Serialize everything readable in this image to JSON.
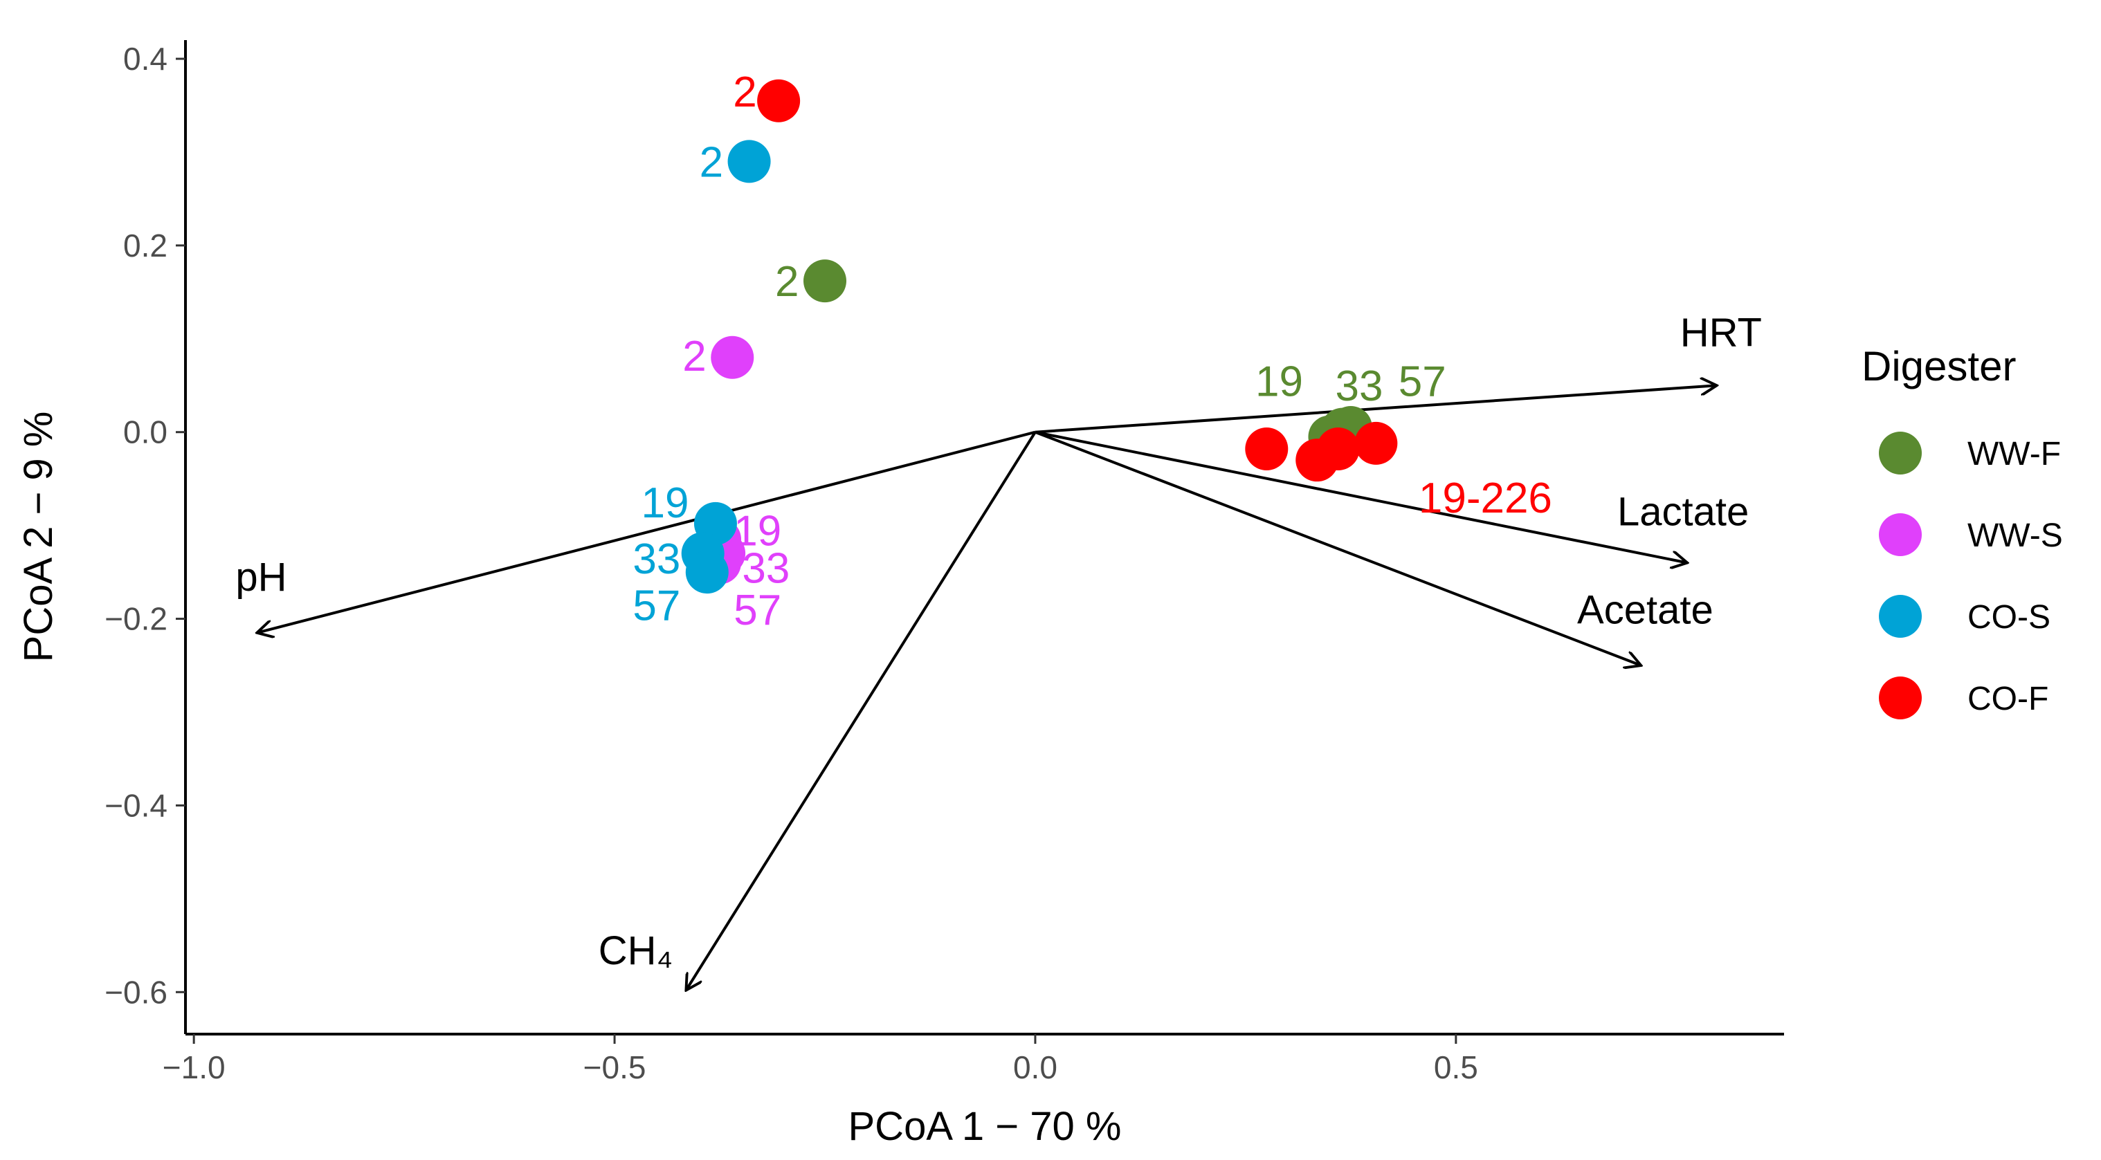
{
  "chart_data": {
    "type": "scatter",
    "title": "",
    "xlabel": "PCoA 1 −  70 %",
    "ylabel": "PCoA 2 −  9 %",
    "xlim": [
      -1.01,
      0.89
    ],
    "ylim": [
      -0.645,
      0.42
    ],
    "xticks": [
      -1.0,
      -0.5,
      0.0,
      0.5
    ],
    "xtick_labels": [
      "−1.0",
      "−0.5",
      "0.0",
      "0.5"
    ],
    "yticks": [
      0.4,
      0.2,
      0.0,
      -0.2,
      -0.4,
      -0.6
    ],
    "ytick_labels": [
      "0.4",
      "0.2",
      "0.0",
      "−0.2",
      "−0.4",
      "−0.6"
    ],
    "grid": false,
    "legend": {
      "title": "Digester",
      "position": "right",
      "entries": [
        {
          "name": "WW-F",
          "color": "#5a8a30"
        },
        {
          "name": "WW-S",
          "color": "#e040fb"
        },
        {
          "name": "CO-S",
          "color": "#00a3d6"
        },
        {
          "name": "CO-F",
          "color": "#ff0000"
        }
      ]
    },
    "series": [
      {
        "name": "WW-F",
        "color": "#5a8a30",
        "points": [
          {
            "x": -0.25,
            "y": 0.162
          },
          {
            "x": 0.35,
            "y": -0.005
          },
          {
            "x": 0.365,
            "y": 0.003
          },
          {
            "x": 0.375,
            "y": 0.005
          }
        ]
      },
      {
        "name": "WW-S",
        "color": "#e040fb",
        "points": [
          {
            "x": -0.36,
            "y": 0.08
          },
          {
            "x": -0.375,
            "y": -0.115
          },
          {
            "x": -0.37,
            "y": -0.13
          },
          {
            "x": -0.375,
            "y": -0.14
          }
        ]
      },
      {
        "name": "CO-S",
        "color": "#00a3d6",
        "points": [
          {
            "x": -0.34,
            "y": 0.29
          },
          {
            "x": -0.38,
            "y": -0.098
          },
          {
            "x": -0.395,
            "y": -0.13
          },
          {
            "x": -0.39,
            "y": -0.15
          }
        ]
      },
      {
        "name": "CO-F",
        "color": "#ff0000",
        "points": [
          {
            "x": -0.305,
            "y": 0.355
          },
          {
            "x": 0.275,
            "y": -0.018
          },
          {
            "x": 0.335,
            "y": -0.03
          },
          {
            "x": 0.36,
            "y": -0.018
          },
          {
            "x": 0.405,
            "y": -0.012
          }
        ]
      }
    ],
    "point_labels": [
      {
        "text": "2",
        "color": "#ff0000",
        "x": -0.345,
        "y": 0.365
      },
      {
        "text": "2",
        "color": "#00a3d6",
        "x": -0.385,
        "y": 0.29
      },
      {
        "text": "2",
        "color": "#5a8a30",
        "x": -0.295,
        "y": 0.162
      },
      {
        "text": "2",
        "color": "#e040fb",
        "x": -0.405,
        "y": 0.082
      },
      {
        "text": "19",
        "color": "#00a3d6",
        "x": -0.44,
        "y": -0.075
      },
      {
        "text": "19",
        "color": "#e040fb",
        "x": -0.33,
        "y": -0.105
      },
      {
        "text": "33",
        "color": "#00a3d6",
        "x": -0.45,
        "y": -0.135
      },
      {
        "text": "33",
        "color": "#e040fb",
        "x": -0.32,
        "y": -0.145
      },
      {
        "text": "57",
        "color": "#00a3d6",
        "x": -0.45,
        "y": -0.185
      },
      {
        "text": "57",
        "color": "#e040fb",
        "x": -0.33,
        "y": -0.19
      },
      {
        "text": "19",
        "color": "#5a8a30",
        "x": 0.29,
        "y": 0.055
      },
      {
        "text": "33",
        "color": "#5a8a30",
        "x": 0.385,
        "y": 0.05
      },
      {
        "text": "57",
        "color": "#5a8a30",
        "x": 0.46,
        "y": 0.055
      },
      {
        "text": "19-226",
        "color": "#ff0000",
        "x": 0.535,
        "y": -0.07
      }
    ],
    "arrows": [
      {
        "name": "HRT",
        "x": 0.81,
        "y": 0.05,
        "label_x": 0.815,
        "label_y": 0.092
      },
      {
        "name": "Lactate",
        "x": 0.775,
        "y": -0.14,
        "label_x": 0.77,
        "label_y": -0.1
      },
      {
        "name": "Acetate",
        "x": 0.72,
        "y": -0.25,
        "label_x": 0.725,
        "label_y": -0.205
      },
      {
        "name": "pH",
        "x": -0.925,
        "y": -0.215,
        "label_x": -0.92,
        "label_y": -0.17
      },
      {
        "name": "CH₄",
        "x": -0.415,
        "y": -0.598,
        "label_x": -0.475,
        "label_y": -0.57
      }
    ]
  }
}
